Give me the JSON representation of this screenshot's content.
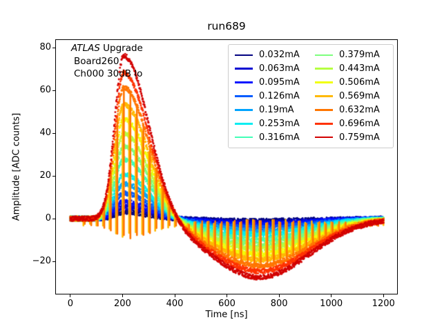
{
  "chart_data": {
    "type": "line",
    "title": "run689",
    "xlabel": "Time [ns]",
    "ylabel": "Amplitude [ADC counts]",
    "grid": false,
    "legend_position": "upper right",
    "legend_columns": 2,
    "xlim": [
      -58,
      1255
    ],
    "ylim": [
      -35.5,
      84
    ],
    "x_ticks": [
      0,
      200,
      400,
      600,
      800,
      1000,
      1200
    ],
    "x_tick_labels": [
      "0",
      "200",
      "400",
      "600",
      "800",
      "1000",
      "1200"
    ],
    "y_ticks": [
      -20,
      0,
      20,
      40,
      60,
      80
    ],
    "y_tick_labels": [
      "−20",
      "0",
      "20",
      "40",
      "60",
      "80"
    ],
    "annotation": {
      "line1_italic": "ATLAS",
      "line1_rest": " Upgrade",
      "line2": "Board260",
      "line3": "Ch000 30dB lo"
    },
    "series": [
      {
        "label": "0.032mA",
        "current_mA": 0.032,
        "color": "#000080",
        "peak_adc": 3.0,
        "undershoot_adc": -1.1
      },
      {
        "label": "0.063mA",
        "current_mA": 0.063,
        "color": "#0000D2",
        "peak_adc": 5.5,
        "undershoot_adc": -2.0
      },
      {
        "label": "0.095mA",
        "current_mA": 0.095,
        "color": "#0012FF",
        "peak_adc": 8.0,
        "undershoot_adc": -2.9
      },
      {
        "label": "0.126mA",
        "current_mA": 0.126,
        "color": "#005BFF",
        "peak_adc": 12.0,
        "undershoot_adc": -4.3
      },
      {
        "label": "0.19mA",
        "current_mA": 0.19,
        "color": "#00A4FF",
        "peak_adc": 16.5,
        "undershoot_adc": -5.9
      },
      {
        "label": "0.253mA",
        "current_mA": 0.253,
        "color": "#06EDF1",
        "peak_adc": 21.0,
        "undershoot_adc": -7.5
      },
      {
        "label": "0.316mA",
        "current_mA": 0.316,
        "color": "#41FFB6",
        "peak_adc": 28.0,
        "undershoot_adc": -10.0
      },
      {
        "label": "0.379mA",
        "current_mA": 0.379,
        "color": "#7CFF7C",
        "peak_adc": 34.0,
        "undershoot_adc": -12.2
      },
      {
        "label": "0.443mA",
        "current_mA": 0.443,
        "color": "#B6FF41",
        "peak_adc": 40.0,
        "undershoot_adc": -14.3
      },
      {
        "label": "0.506mA",
        "current_mA": 0.506,
        "color": "#F1FF06",
        "peak_adc": 47.0,
        "undershoot_adc": -16.8
      },
      {
        "label": "0.569mA",
        "current_mA": 0.569,
        "color": "#FFB900",
        "peak_adc": 54.0,
        "undershoot_adc": -19.3
      },
      {
        "label": "0.632mA",
        "current_mA": 0.632,
        "color": "#FF7500",
        "peak_adc": 62.0,
        "undershoot_adc": -22.2
      },
      {
        "label": "0.696mA",
        "current_mA": 0.696,
        "color": "#FF3200",
        "peak_adc": 69.0,
        "undershoot_adc": -24.7
      },
      {
        "label": "0.759mA",
        "current_mA": 0.759,
        "color": "#D20000",
        "peak_adc": 77.0,
        "undershoot_adc": -27.6
      }
    ],
    "pulse_shape": {
      "t_start_ns": 0,
      "t_end_ns": 1200,
      "peak_time_ns": 205,
      "rise_sigma_ns": 35,
      "fall_sigma_ns": 95,
      "undershoot_fraction": 0.357,
      "undershoot_center_ns": 725,
      "undershoot_sigma_ns": 270,
      "noise_adc": 1.1
    },
    "spikes": {
      "series_labels": [
        "0.569mA",
        "0.632mA"
      ],
      "start_ns": 55,
      "period_ns": 25,
      "end_ns": 1200
    }
  }
}
